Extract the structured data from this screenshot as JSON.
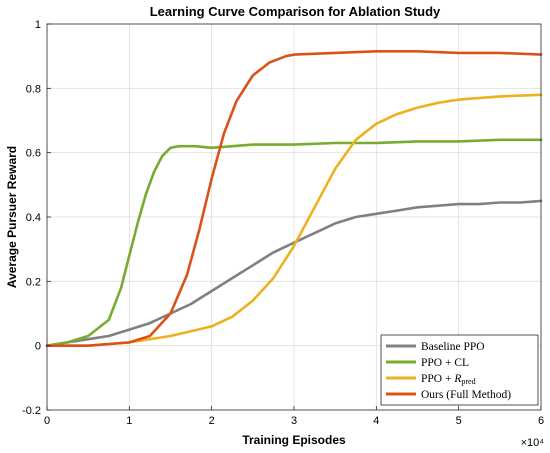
{
  "chart_data": {
    "type": "line",
    "title": "Learning Curve Comparison for Ablation Study",
    "xlabel": "Training Episodes",
    "ylabel": "Average Pursuer Reward",
    "x_multiplier_label": "×10⁴",
    "xlim": [
      0,
      6
    ],
    "ylim": [
      -0.2,
      1
    ],
    "x_ticks": [
      "0",
      "1",
      "2",
      "3",
      "4",
      "5",
      "6"
    ],
    "y_ticks": [
      "-0.2",
      "0",
      "0.2",
      "0.4",
      "0.6",
      "0.8",
      "1"
    ],
    "grid": true,
    "legend_position": "bottom-right",
    "series": [
      {
        "name": "Baseline PPO",
        "color": "#808080",
        "x": [
          0,
          0.25,
          0.5,
          0.75,
          1.0,
          1.25,
          1.5,
          1.75,
          2.0,
          2.25,
          2.5,
          2.75,
          3.0,
          3.25,
          3.5,
          3.75,
          4.0,
          4.25,
          4.5,
          4.75,
          5.0,
          5.25,
          5.5,
          5.75,
          6.0
        ],
        "y": [
          0.0,
          0.01,
          0.02,
          0.03,
          0.05,
          0.07,
          0.1,
          0.13,
          0.17,
          0.21,
          0.25,
          0.29,
          0.32,
          0.35,
          0.38,
          0.4,
          0.41,
          0.42,
          0.43,
          0.435,
          0.44,
          0.44,
          0.445,
          0.445,
          0.45
        ]
      },
      {
        "name": "PPO + CL",
        "color": "#77ac30",
        "x": [
          0,
          0.25,
          0.5,
          0.75,
          0.9,
          1.0,
          1.1,
          1.2,
          1.3,
          1.4,
          1.5,
          1.6,
          1.8,
          2.0,
          2.5,
          3.0,
          3.5,
          4.0,
          4.5,
          5.0,
          5.5,
          6.0
        ],
        "y": [
          0.0,
          0.01,
          0.03,
          0.08,
          0.18,
          0.28,
          0.38,
          0.47,
          0.54,
          0.59,
          0.615,
          0.62,
          0.62,
          0.615,
          0.625,
          0.625,
          0.63,
          0.63,
          0.635,
          0.635,
          0.64,
          0.64
        ]
      },
      {
        "name": "PPO + R_pred",
        "name_main": "PPO + ",
        "name_italic": "R",
        "name_sub": "pred",
        "color": "#edb120",
        "x": [
          0,
          0.5,
          1.0,
          1.5,
          2.0,
          2.25,
          2.5,
          2.75,
          3.0,
          3.25,
          3.5,
          3.75,
          4.0,
          4.25,
          4.5,
          4.75,
          5.0,
          5.5,
          6.0
        ],
        "y": [
          0.0,
          0.0,
          0.01,
          0.03,
          0.06,
          0.09,
          0.14,
          0.21,
          0.31,
          0.43,
          0.55,
          0.64,
          0.69,
          0.72,
          0.74,
          0.755,
          0.765,
          0.775,
          0.78
        ]
      },
      {
        "name": "Ours (Full Method)",
        "color": "#d95319",
        "x": [
          0,
          0.5,
          1.0,
          1.25,
          1.5,
          1.7,
          1.85,
          2.0,
          2.15,
          2.3,
          2.5,
          2.7,
          2.9,
          3.0,
          3.5,
          4.0,
          4.5,
          5.0,
          5.5,
          6.0
        ],
        "y": [
          0.0,
          0.0,
          0.01,
          0.03,
          0.1,
          0.22,
          0.36,
          0.52,
          0.66,
          0.76,
          0.84,
          0.88,
          0.9,
          0.905,
          0.91,
          0.915,
          0.915,
          0.91,
          0.91,
          0.905
        ]
      }
    ]
  }
}
